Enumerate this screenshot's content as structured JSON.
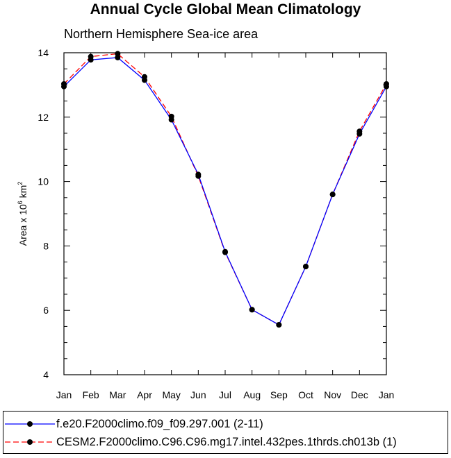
{
  "chart_data": {
    "type": "line",
    "title": "Annual Cycle Global Mean Climatology",
    "subtitle": "Northern Hemisphere Sea-ice area",
    "xlabel": "",
    "ylabel": "Area x 10",
    "ylabel_exp": "6",
    "ylabel_unit": "km",
    "ylabel_unit_exp": "2",
    "categories": [
      "Jan",
      "Feb",
      "Mar",
      "Apr",
      "May",
      "Jun",
      "Jul",
      "Aug",
      "Sep",
      "Oct",
      "Nov",
      "Dec",
      "Jan"
    ],
    "ylim": [
      4,
      14
    ],
    "yticks": [
      4,
      6,
      8,
      10,
      12,
      14
    ],
    "grid": false,
    "legend_position": "bottom",
    "series": [
      {
        "name": "f.e20.F2000climo.f09_f09.297.001 (2-11)",
        "color": "#0000ff",
        "dash": "solid",
        "values": [
          12.95,
          13.78,
          13.85,
          13.15,
          11.92,
          10.22,
          7.82,
          6.02,
          5.55,
          7.36,
          9.6,
          11.48,
          12.95
        ]
      },
      {
        "name": "CESM2.F2000climo.C96.C96.mg17.intel.432pes.1thrds.ch013b (1)",
        "color": "#ff0000",
        "dash": "dashed",
        "values": [
          13.03,
          13.88,
          13.97,
          13.25,
          12.02,
          10.17,
          7.8,
          6.02,
          5.55,
          7.36,
          9.6,
          11.56,
          13.03
        ]
      }
    ]
  }
}
